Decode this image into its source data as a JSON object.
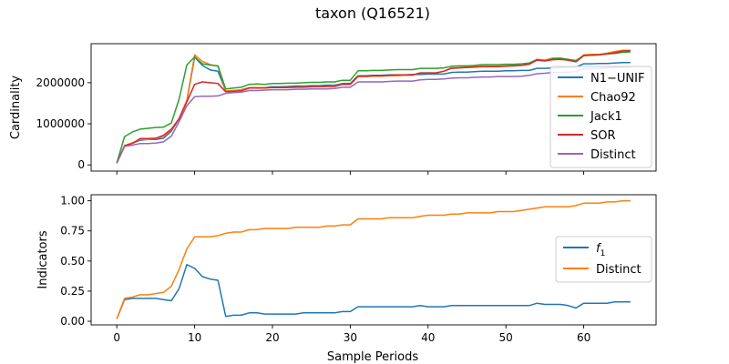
{
  "figure": {
    "title": "taxon (Q16521)",
    "xlabel": "Sample Periods"
  },
  "colors": {
    "blue": "#1f77b4",
    "orange": "#ff7f0e",
    "green": "#2ca02c",
    "red": "#d62728",
    "purple": "#9467bd"
  },
  "chart_data": [
    {
      "type": "line",
      "ylabel": "Cardinality",
      "xlim": [
        -3.3,
        69.3
      ],
      "ylim": [
        -150000,
        2950000
      ],
      "xticks": [
        0,
        10,
        20,
        30,
        40,
        50,
        60
      ],
      "yticks": [
        0,
        1000000,
        2000000
      ],
      "ytick_labels": [
        "0",
        "1000000",
        "2000000"
      ],
      "legend_position": "lower-right",
      "x": [
        0,
        1,
        2,
        3,
        4,
        5,
        6,
        7,
        8,
        9,
        10,
        11,
        12,
        13,
        14,
        15,
        16,
        17,
        18,
        19,
        20,
        21,
        22,
        23,
        24,
        25,
        26,
        27,
        28,
        29,
        30,
        31,
        32,
        33,
        34,
        35,
        36,
        37,
        38,
        39,
        40,
        41,
        42,
        43,
        44,
        45,
        46,
        47,
        48,
        49,
        50,
        51,
        52,
        53,
        54,
        55,
        56,
        57,
        58,
        59,
        60,
        61,
        62,
        63,
        64,
        65,
        66
      ],
      "series": [
        {
          "name": "N1−UNIF",
          "color_key": "blue",
          "values": [
            50000,
            460000,
            530000,
            600000,
            620000,
            620000,
            650000,
            820000,
            1120000,
            1550000,
            2620000,
            2420000,
            2310000,
            2280000,
            1800000,
            1810000,
            1830000,
            1880000,
            1880000,
            1880000,
            1900000,
            1900000,
            1910000,
            1920000,
            1920000,
            1930000,
            1930000,
            1940000,
            1940000,
            1980000,
            1980000,
            2170000,
            2170000,
            2180000,
            2180000,
            2190000,
            2190000,
            2190000,
            2200000,
            2200000,
            2210000,
            2210000,
            2210000,
            2250000,
            2260000,
            2260000,
            2270000,
            2280000,
            2280000,
            2280000,
            2290000,
            2290000,
            2300000,
            2300000,
            2350000,
            2350000,
            2360000,
            2370000,
            2380000,
            2380000,
            2460000,
            2460000,
            2470000,
            2470000,
            2480000,
            2490000,
            2490000
          ]
        },
        {
          "name": "Chao92",
          "color_key": "orange",
          "values": [
            50000,
            470000,
            540000,
            620000,
            620000,
            640000,
            700000,
            850000,
            1130000,
            1570000,
            2680000,
            2520000,
            2440000,
            2400000,
            1800000,
            1810000,
            1830000,
            1880000,
            1880000,
            1880000,
            1880000,
            1880000,
            1890000,
            1890000,
            1900000,
            1900000,
            1910000,
            1910000,
            1920000,
            1960000,
            1960000,
            2150000,
            2150000,
            2160000,
            2160000,
            2170000,
            2170000,
            2180000,
            2180000,
            2240000,
            2240000,
            2240000,
            2280000,
            2360000,
            2370000,
            2380000,
            2390000,
            2400000,
            2400000,
            2400000,
            2410000,
            2420000,
            2420000,
            2470000,
            2570000,
            2550000,
            2600000,
            2600000,
            2570000,
            2520000,
            2680000,
            2690000,
            2690000,
            2720000,
            2760000,
            2790000,
            2790000
          ]
        },
        {
          "name": "Jack1",
          "color_key": "green",
          "values": [
            50000,
            690000,
            800000,
            870000,
            890000,
            910000,
            920000,
            1020000,
            1600000,
            2430000,
            2630000,
            2460000,
            2430000,
            2410000,
            1850000,
            1870000,
            1890000,
            1960000,
            1970000,
            1960000,
            1980000,
            1980000,
            1990000,
            1990000,
            2000000,
            2010000,
            2010000,
            2020000,
            2020000,
            2060000,
            2060000,
            2290000,
            2290000,
            2300000,
            2300000,
            2310000,
            2320000,
            2320000,
            2320000,
            2350000,
            2350000,
            2350000,
            2360000,
            2400000,
            2410000,
            2410000,
            2420000,
            2440000,
            2440000,
            2440000,
            2450000,
            2450000,
            2460000,
            2480000,
            2560000,
            2540000,
            2580000,
            2590000,
            2570000,
            2540000,
            2660000,
            2670000,
            2680000,
            2700000,
            2710000,
            2740000,
            2750000
          ]
        },
        {
          "name": "SOR",
          "color_key": "red",
          "values": [
            50000,
            470000,
            520000,
            640000,
            640000,
            650000,
            720000,
            870000,
            1120000,
            1530000,
            1960000,
            2020000,
            2000000,
            1980000,
            1780000,
            1790000,
            1800000,
            1870000,
            1870000,
            1870000,
            1880000,
            1880000,
            1880000,
            1890000,
            1890000,
            1900000,
            1900000,
            1910000,
            1910000,
            1960000,
            1960000,
            2160000,
            2160000,
            2170000,
            2170000,
            2180000,
            2190000,
            2190000,
            2190000,
            2240000,
            2240000,
            2240000,
            2280000,
            2350000,
            2360000,
            2370000,
            2380000,
            2390000,
            2390000,
            2390000,
            2400000,
            2410000,
            2420000,
            2450000,
            2550000,
            2530000,
            2560000,
            2570000,
            2550000,
            2510000,
            2660000,
            2670000,
            2680000,
            2700000,
            2730000,
            2770000,
            2780000
          ]
        },
        {
          "name": "Distinct",
          "color_key": "purple",
          "values": [
            40000,
            450000,
            480000,
            520000,
            520000,
            530000,
            560000,
            700000,
            1050000,
            1440000,
            1660000,
            1670000,
            1670000,
            1680000,
            1740000,
            1760000,
            1770000,
            1810000,
            1810000,
            1820000,
            1830000,
            1830000,
            1830000,
            1840000,
            1840000,
            1850000,
            1850000,
            1850000,
            1860000,
            1890000,
            1890000,
            2020000,
            2020000,
            2020000,
            2020000,
            2030000,
            2040000,
            2040000,
            2040000,
            2070000,
            2080000,
            2080000,
            2090000,
            2110000,
            2120000,
            2120000,
            2130000,
            2140000,
            2140000,
            2150000,
            2150000,
            2150000,
            2160000,
            2180000,
            2220000,
            2230000,
            2250000,
            2250000,
            2260000,
            2270000,
            2340000,
            2340000,
            2350000,
            2360000,
            2370000,
            2380000,
            2380000
          ]
        }
      ]
    },
    {
      "type": "line",
      "ylabel": "Indicators",
      "xlim": [
        -3.3,
        69.3
      ],
      "ylim": [
        -0.03,
        1.05
      ],
      "xticks": [
        0,
        10,
        20,
        30,
        40,
        50,
        60
      ],
      "yticks": [
        0.0,
        0.25,
        0.5,
        0.75,
        1.0
      ],
      "ytick_labels": [
        "0.00",
        "0.25",
        "0.50",
        "0.75",
        "1.00"
      ],
      "legend_position": "center-right",
      "x": [
        0,
        1,
        2,
        3,
        4,
        5,
        6,
        7,
        8,
        9,
        10,
        11,
        12,
        13,
        14,
        15,
        16,
        17,
        18,
        19,
        20,
        21,
        22,
        23,
        24,
        25,
        26,
        27,
        28,
        29,
        30,
        31,
        32,
        33,
        34,
        35,
        36,
        37,
        38,
        39,
        40,
        41,
        42,
        43,
        44,
        45,
        46,
        47,
        48,
        49,
        50,
        51,
        52,
        53,
        54,
        55,
        56,
        57,
        58,
        59,
        60,
        61,
        62,
        63,
        64,
        65,
        66
      ],
      "series": [
        {
          "name": "f1",
          "label_main": "f",
          "label_sub": "1",
          "color_key": "blue",
          "values": [
            0.02,
            0.18,
            0.19,
            0.19,
            0.19,
            0.19,
            0.18,
            0.17,
            0.27,
            0.47,
            0.44,
            0.37,
            0.35,
            0.34,
            0.04,
            0.05,
            0.05,
            0.07,
            0.07,
            0.06,
            0.06,
            0.06,
            0.06,
            0.06,
            0.07,
            0.07,
            0.07,
            0.07,
            0.07,
            0.08,
            0.08,
            0.12,
            0.12,
            0.12,
            0.12,
            0.12,
            0.12,
            0.12,
            0.12,
            0.13,
            0.12,
            0.12,
            0.12,
            0.13,
            0.13,
            0.13,
            0.13,
            0.13,
            0.13,
            0.13,
            0.13,
            0.13,
            0.13,
            0.13,
            0.15,
            0.14,
            0.14,
            0.14,
            0.13,
            0.11,
            0.15,
            0.15,
            0.15,
            0.15,
            0.16,
            0.16,
            0.16
          ]
        },
        {
          "name": "Distinct",
          "color_key": "orange",
          "values": [
            0.02,
            0.19,
            0.2,
            0.22,
            0.22,
            0.23,
            0.24,
            0.29,
            0.43,
            0.6,
            0.7,
            0.7,
            0.7,
            0.71,
            0.73,
            0.74,
            0.74,
            0.76,
            0.76,
            0.77,
            0.77,
            0.77,
            0.77,
            0.78,
            0.78,
            0.78,
            0.78,
            0.79,
            0.79,
            0.8,
            0.8,
            0.85,
            0.85,
            0.85,
            0.85,
            0.86,
            0.86,
            0.86,
            0.86,
            0.87,
            0.88,
            0.88,
            0.88,
            0.89,
            0.89,
            0.9,
            0.9,
            0.9,
            0.9,
            0.91,
            0.91,
            0.91,
            0.92,
            0.93,
            0.94,
            0.95,
            0.95,
            0.95,
            0.95,
            0.96,
            0.98,
            0.98,
            0.98,
            0.99,
            0.99,
            1.0,
            1.0
          ]
        }
      ]
    }
  ]
}
